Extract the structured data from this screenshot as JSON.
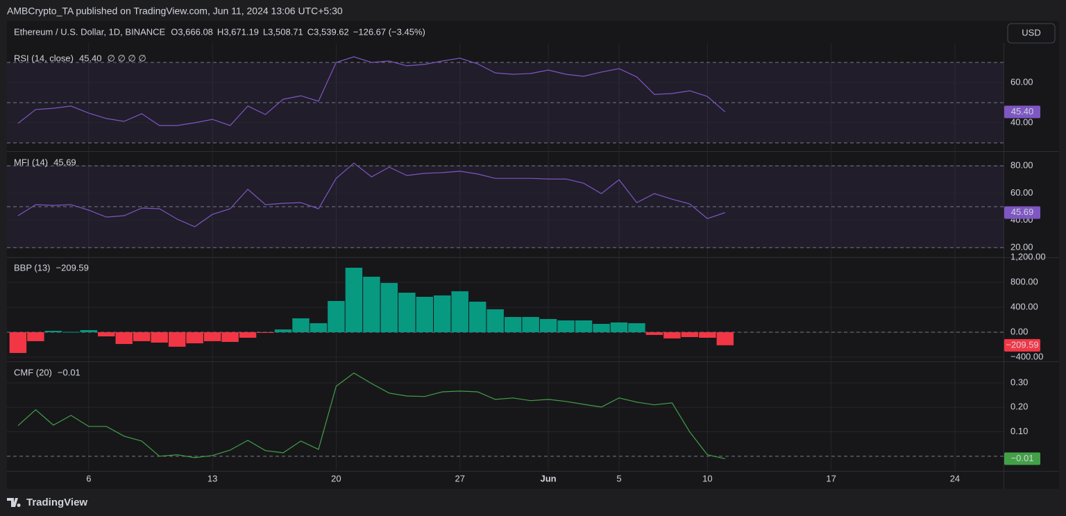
{
  "header": {
    "published": "AMBCrypto_TA published on TradingView.com, Jun 11, 2024 13:06 UTC+5:30",
    "symbol": "Ethereum / U.S. Dollar, 1D, BINANCE",
    "ohlc": [
      {
        "key": "O",
        "value": "3,666.08"
      },
      {
        "key": "H",
        "value": "3,671.19"
      },
      {
        "key": "L",
        "value": "3,508.71"
      },
      {
        "key": "C",
        "value": "3,539.62"
      }
    ],
    "change": "−126.67 (−3.45%)",
    "currency": "USD"
  },
  "footer": {
    "brand": "TradingView"
  },
  "time_axis": {
    "x": [
      "2024-05-02",
      "2024-05-03",
      "2024-05-04",
      "2024-05-05",
      "2024-05-06",
      "2024-05-07",
      "2024-05-08",
      "2024-05-09",
      "2024-05-10",
      "2024-05-11",
      "2024-05-12",
      "2024-05-13",
      "2024-05-14",
      "2024-05-15",
      "2024-05-16",
      "2024-05-17",
      "2024-05-18",
      "2024-05-19",
      "2024-05-20",
      "2024-05-21",
      "2024-05-22",
      "2024-05-23",
      "2024-05-24",
      "2024-05-25",
      "2024-05-26",
      "2024-05-27",
      "2024-05-28",
      "2024-05-29",
      "2024-05-30",
      "2024-05-31",
      "2024-06-01",
      "2024-06-02",
      "2024-06-03",
      "2024-06-04",
      "2024-06-05",
      "2024-06-06",
      "2024-06-07",
      "2024-06-08",
      "2024-06-09",
      "2024-06-10",
      "2024-06-11"
    ],
    "xlim": [
      "2024-05-01T09:00Z",
      "2024-06-26T18:00Z"
    ],
    "xticks": [
      {
        "value": "2024-05-06",
        "label": "6"
      },
      {
        "value": "2024-05-13",
        "label": "13"
      },
      {
        "value": "2024-05-20",
        "label": "20"
      },
      {
        "value": "2024-05-27",
        "label": "27"
      },
      {
        "value": "2024-06-01",
        "label": "Jun"
      },
      {
        "value": "2024-06-05",
        "label": "5"
      },
      {
        "value": "2024-06-10",
        "label": "10"
      },
      {
        "value": "2024-06-17",
        "label": "17"
      },
      {
        "value": "2024-06-24",
        "label": "24"
      }
    ]
  },
  "chart_data": [
    {
      "type": "line",
      "title": "RSI (14, close)",
      "last_value_label": "45.40",
      "flags": "∅ ∅ ∅ ∅",
      "color": "#7e57c2",
      "values": [
        39.7,
        46.6,
        47.2,
        48.3,
        44.8,
        42.1,
        40.7,
        44.5,
        38.6,
        38.6,
        40,
        41.7,
        38.6,
        48.3,
        44.1,
        51.7,
        53.4,
        50.7,
        70,
        72.8,
        70,
        70.7,
        68.3,
        69,
        70.7,
        72.1,
        69.3,
        64.8,
        64.1,
        64.5,
        66.2,
        64.1,
        63.1,
        65.2,
        66.9,
        62.8,
        54.1,
        54.5,
        55.9,
        53.1,
        45.4
      ],
      "ylim": [
        26.2,
        76.9
      ],
      "yticks": [
        {
          "value": 40,
          "label": "40.00"
        },
        {
          "value": 60,
          "label": "60.00"
        }
      ],
      "levels": [
        30,
        50,
        70
      ],
      "band": [
        30,
        70
      ],
      "grid": true
    },
    {
      "type": "line",
      "title": "MFI (14)",
      "last_value_label": "45.69",
      "color": "#7e57c2",
      "values": [
        43.4,
        51.5,
        51,
        51.5,
        47.5,
        42.4,
        43.4,
        49,
        48.5,
        40.9,
        35.3,
        44.4,
        48.5,
        62.8,
        51.5,
        52.5,
        53,
        48.5,
        70.8,
        82,
        71.9,
        79,
        72.9,
        74.5,
        75,
        76,
        74,
        70.8,
        70.8,
        70.8,
        70.3,
        70.3,
        67.2,
        59.6,
        69.8,
        53,
        59.6,
        55.5,
        52,
        41.3,
        45.69
      ],
      "ylim": [
        13.4,
        89.7
      ],
      "yticks": [
        {
          "value": 20,
          "label": "20.00"
        },
        {
          "value": 40,
          "label": "40.00"
        },
        {
          "value": 60,
          "label": "60.00"
        },
        {
          "value": 80,
          "label": "80.00"
        }
      ],
      "levels": [
        20,
        50,
        80
      ],
      "band": [
        20,
        80
      ],
      "grid": true
    },
    {
      "type": "bar",
      "title": "BBP (13)",
      "last_value_label": "−209.59",
      "color": "#f23645",
      "up_color": "#089981",
      "down_color": "#f23645",
      "values": [
        -333,
        -144,
        22,
        5,
        33,
        -67,
        -189,
        -144,
        -167,
        -233,
        -178,
        -144,
        -156,
        -89,
        -11,
        44,
        222,
        144,
        500,
        1033,
        889,
        789,
        633,
        567,
        589,
        656,
        489,
        367,
        244,
        244,
        211,
        189,
        189,
        133,
        156,
        144,
        -44,
        -100,
        -78,
        -89,
        -209.59
      ],
      "ylim": [
        -456,
        1189
      ],
      "yticks": [
        {
          "value": -400,
          "label": "−400.00"
        },
        {
          "value": 0,
          "label": "0.00"
        },
        {
          "value": 400,
          "label": "400.00"
        },
        {
          "value": 800,
          "label": "800.00"
        },
        {
          "value": 1200,
          "label": "1,200.00"
        }
      ],
      "levels": [
        0
      ],
      "grid": true
    },
    {
      "type": "line",
      "title": "CMF (20)",
      "last_value_label": "−0.01",
      "color": "#43a047",
      "values": [
        0.125,
        0.19,
        0.127,
        0.167,
        0.122,
        0.122,
        0.082,
        0.062,
        0,
        0.006,
        -0.006,
        0.003,
        0.025,
        0.065,
        0.023,
        0.014,
        0.062,
        0.028,
        0.286,
        0.34,
        0.297,
        0.258,
        0.246,
        0.244,
        0.263,
        0.266,
        0.263,
        0.232,
        0.238,
        0.227,
        0.232,
        0.224,
        0.212,
        0.201,
        0.238,
        0.221,
        0.21,
        0.218,
        0.099,
        0.006,
        -0.01
      ],
      "ylim": [
        -0.06,
        0.382
      ],
      "yticks": [
        {
          "value": 0.1,
          "label": "0.10"
        },
        {
          "value": 0.2,
          "label": "0.20"
        },
        {
          "value": 0.3,
          "label": "0.30"
        }
      ],
      "levels": [
        0
      ],
      "grid": true
    }
  ]
}
